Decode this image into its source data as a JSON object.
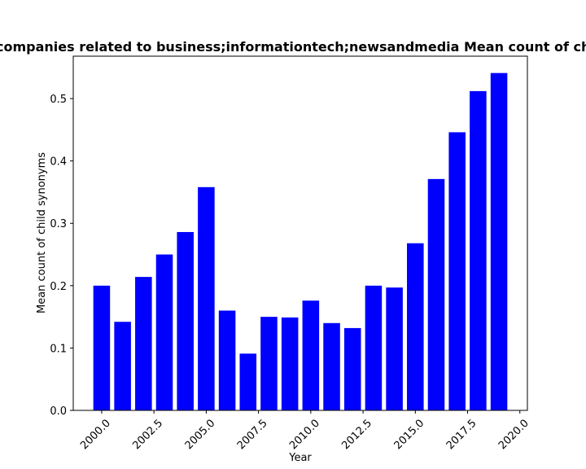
{
  "chart_data": {
    "type": "bar",
    "title": "Number of companies related to business;informationtech;newsandmedia Mean count of child synonyms",
    "xlabel": "Year",
    "ylabel": "Mean count of child synonyms",
    "bar_color": "#0000ff",
    "x": [
      2000,
      2001,
      2002,
      2003,
      2004,
      2005,
      2006,
      2007,
      2008,
      2009,
      2010,
      2011,
      2012,
      2013,
      2014,
      2015,
      2016,
      2017,
      2018,
      2019
    ],
    "values": [
      0.2,
      0.142,
      0.214,
      0.25,
      0.286,
      0.358,
      0.16,
      0.091,
      0.15,
      0.149,
      0.176,
      0.14,
      0.132,
      0.2,
      0.197,
      0.268,
      0.371,
      0.446,
      0.512,
      0.541
    ],
    "xlim": [
      1998.64,
      2020.36
    ],
    "ylim": [
      0,
      0.568
    ],
    "xticks": [
      2000.0,
      2002.5,
      2005.0,
      2007.5,
      2010.0,
      2012.5,
      2015.0,
      2017.5,
      2020.0
    ],
    "xtick_labels": [
      "2000.0",
      "2002.5",
      "2005.0",
      "2007.5",
      "2010.0",
      "2012.5",
      "2015.0",
      "2017.5",
      "2020.0"
    ],
    "yticks": [
      0.0,
      0.1,
      0.2,
      0.3,
      0.4,
      0.5
    ],
    "ytick_labels": [
      "0.0",
      "0.1",
      "0.2",
      "0.3",
      "0.4",
      "0.5"
    ],
    "grid": false,
    "legend": "none"
  }
}
